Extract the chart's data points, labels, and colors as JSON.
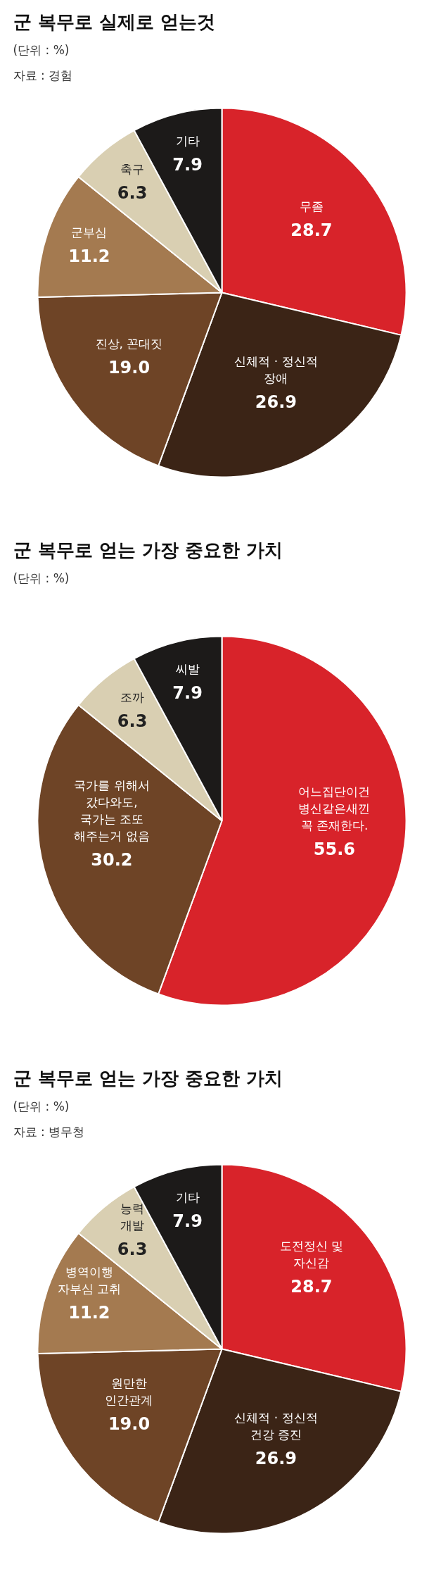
{
  "chart_data": [
    {
      "type": "pie",
      "title": "군 복무로 실제로 얻는것",
      "annotations": [
        "(단위 : %)",
        "자료 : 경험"
      ],
      "categories": [
        "무좀",
        "신체적 · 정신적\n장애",
        "진상, 꼰대짓",
        "군부심",
        "축구",
        "기타"
      ],
      "values": [
        28.7,
        26.9,
        19.0,
        11.2,
        6.3,
        7.9
      ],
      "value_labels": [
        "28.7",
        "26.9",
        "19.0",
        "11.2",
        "6.3",
        "7.9"
      ],
      "colors": [
        "#d8232a",
        "#3b2416",
        "#6e4426",
        "#a47a50",
        "#d9cfb2",
        "#1c1a19"
      ]
    },
    {
      "type": "pie",
      "title": "군 복무로 얻는 가장 중요한 가치",
      "annotations": [
        "(단위 : %)"
      ],
      "categories": [
        "어느집단이건\n병신같은새낀\n꼭 존재한다.",
        "국가를 위해서\n갔다와도,\n국가는 조또\n해주는거 없음",
        "조까",
        "씨발"
      ],
      "values": [
        55.6,
        30.2,
        6.3,
        7.9
      ],
      "value_labels": [
        "55.6",
        "30.2",
        "6.3",
        "7.9"
      ],
      "colors": [
        "#d8232a",
        "#6e4426",
        "#d9cfb2",
        "#1c1a19"
      ]
    },
    {
      "type": "pie",
      "title": "군 복무로 얻는 가장 중요한 가치",
      "annotations": [
        "(단위 : %)",
        "자료 : 병무청"
      ],
      "categories": [
        "도전정신 및\n자신감",
        "신체적 · 정신적\n건강 증진",
        "원만한\n인간관계",
        "병역이행\n자부심 고취",
        "능력\n개발",
        "기타"
      ],
      "values": [
        28.7,
        26.9,
        19.0,
        11.2,
        6.3,
        7.9
      ],
      "value_labels": [
        "28.7",
        "26.9",
        "19.0",
        "11.2",
        "6.3",
        "7.9"
      ],
      "colors": [
        "#d8232a",
        "#3b2416",
        "#6e4426",
        "#a47a50",
        "#d9cfb2",
        "#1c1a19"
      ]
    }
  ]
}
